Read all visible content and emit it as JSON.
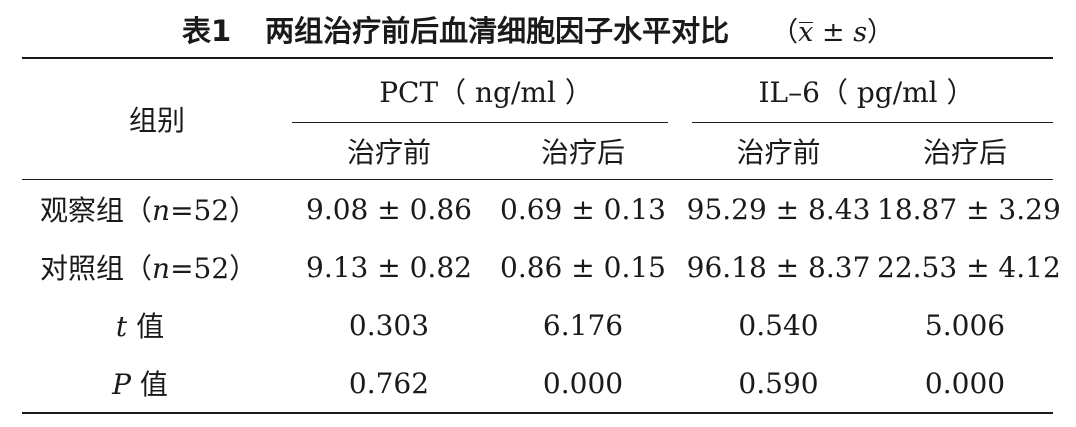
{
  "caption": {
    "label": "表1",
    "title": "两组治疗前后血清细胞因子水平对比",
    "stat_open": "（",
    "stat_mean": "x",
    "stat_pm": " ± ",
    "stat_s": "s",
    "stat_close": "）"
  },
  "table": {
    "group_header": "组别",
    "pct_header": "PCT（ ng/ml ）",
    "il6_header": "IL–6（ pg/ml ）",
    "sub_headers": [
      "治疗前",
      "治疗后",
      "治疗前",
      "治疗后"
    ],
    "rows": [
      {
        "label_prefix": "观察组（",
        "label_n": "n",
        "label_suffix": "=52）",
        "values": [
          "9.08 ± 0.86",
          "0.69 ± 0.13",
          "95.29 ± 8.43",
          "18.87 ± 3.29"
        ]
      },
      {
        "label_prefix": "对照组（",
        "label_n": "n",
        "label_suffix": "=52）",
        "values": [
          "9.13 ± 0.82",
          "0.86 ± 0.15",
          "96.18 ± 8.37",
          "22.53 ± 4.12"
        ]
      },
      {
        "label_stat": "t",
        "label_word": " 值",
        "values": [
          "0.303",
          "6.176",
          "0.540",
          "5.006"
        ]
      },
      {
        "label_stat": "P",
        "label_word": " 值",
        "values": [
          "0.762",
          "0.000",
          "0.590",
          "0.000"
        ]
      }
    ]
  }
}
